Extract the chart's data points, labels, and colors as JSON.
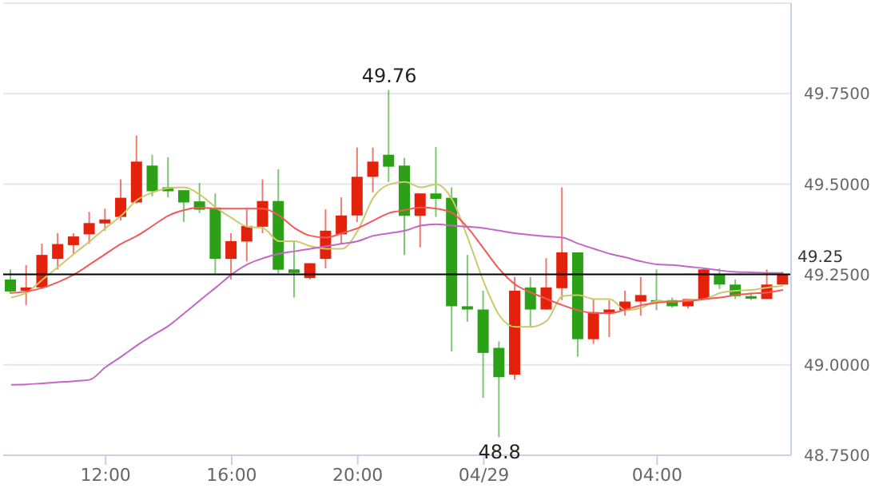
{
  "chart_data": {
    "type": "candlestick",
    "categories": [
      null,
      null,
      null,
      null,
      null,
      null,
      "12:00",
      null,
      null,
      null,
      null,
      null,
      null,
      null,
      "16:00",
      null,
      null,
      null,
      null,
      null,
      null,
      null,
      "20:00",
      null,
      null,
      null,
      null,
      null,
      null,
      null,
      "04/29",
      null,
      null,
      null,
      null,
      null,
      null,
      null,
      null,
      null,
      null,
      "04:00",
      null,
      null,
      null,
      null,
      null,
      null,
      null,
      null
    ],
    "ohlc": [
      [
        49.236,
        49.264,
        49.196,
        49.203
      ],
      [
        49.205,
        49.276,
        49.165,
        49.214
      ],
      [
        49.214,
        49.335,
        49.21,
        49.304
      ],
      [
        49.293,
        49.364,
        49.264,
        49.334
      ],
      [
        49.331,
        49.364,
        49.307,
        49.355
      ],
      [
        49.361,
        49.423,
        49.335,
        49.392
      ],
      [
        49.391,
        49.432,
        49.371,
        49.402
      ],
      [
        49.409,
        49.513,
        49.399,
        49.462
      ],
      [
        49.449,
        49.634,
        49.446,
        49.562
      ],
      [
        49.551,
        49.581,
        49.466,
        49.48
      ],
      [
        49.491,
        49.574,
        49.463,
        49.48
      ],
      [
        49.483,
        49.483,
        49.395,
        49.449
      ],
      [
        49.452,
        49.503,
        49.42,
        49.429
      ],
      [
        49.435,
        49.474,
        49.253,
        49.293
      ],
      [
        49.293,
        49.364,
        49.236,
        49.342
      ],
      [
        49.341,
        49.43,
        49.286,
        49.384
      ],
      [
        49.382,
        49.513,
        49.364,
        49.453
      ],
      [
        49.453,
        49.541,
        49.253,
        49.263
      ],
      [
        49.264,
        49.341,
        49.186,
        49.254
      ],
      [
        49.24,
        49.281,
        49.236,
        49.281
      ],
      [
        49.293,
        49.43,
        49.267,
        49.371
      ],
      [
        49.361,
        49.463,
        49.335,
        49.413
      ],
      [
        49.413,
        49.601,
        49.395,
        49.52
      ],
      [
        49.52,
        49.601,
        49.477,
        49.562
      ],
      [
        49.581,
        49.76,
        49.506,
        49.548
      ],
      [
        49.551,
        49.572,
        49.304,
        49.412
      ],
      [
        49.412,
        49.474,
        49.325,
        49.474
      ],
      [
        49.474,
        49.602,
        49.409,
        49.459
      ],
      [
        49.462,
        49.491,
        49.037,
        49.162
      ],
      [
        49.162,
        49.304,
        49.119,
        49.153
      ],
      [
        49.153,
        49.205,
        48.909,
        49.033
      ],
      [
        49.047,
        49.065,
        48.8,
        48.966
      ],
      [
        48.973,
        49.243,
        48.959,
        49.205
      ],
      [
        49.214,
        49.243,
        49.105,
        49.153
      ],
      [
        49.153,
        49.295,
        49.153,
        49.214
      ],
      [
        49.212,
        49.491,
        49.179,
        49.311
      ],
      [
        49.311,
        49.311,
        49.023,
        49.071
      ],
      [
        49.071,
        49.182,
        49.058,
        49.146
      ],
      [
        49.143,
        49.179,
        49.077,
        49.153
      ],
      [
        49.151,
        49.205,
        49.136,
        49.175
      ],
      [
        49.175,
        49.243,
        49.136,
        49.193
      ],
      [
        49.179,
        49.264,
        49.151,
        49.175
      ],
      [
        49.179,
        49.186,
        49.158,
        49.162
      ],
      [
        49.162,
        49.182,
        49.156,
        49.182
      ],
      [
        49.182,
        49.264,
        49.182,
        49.264
      ],
      [
        49.25,
        49.267,
        49.21,
        49.222
      ],
      [
        49.222,
        49.236,
        49.182,
        49.19
      ],
      [
        49.19,
        49.2,
        49.179,
        49.183
      ],
      [
        49.182,
        49.264,
        49.182,
        49.222
      ],
      [
        49.222,
        49.257,
        49.222,
        49.25
      ]
    ],
    "colors": [
      "#2ca118",
      "#e4220c",
      "#e4220c",
      "#e4220c",
      "#e4220c",
      "#e4220c",
      "#e4220c",
      "#e4220c",
      "#e4220c",
      "#2ca118",
      "#2ca118",
      "#2ca118",
      "#2ca118",
      "#2ca118",
      "#e4220c",
      "#e4220c",
      "#e4220c",
      "#2ca118",
      "#2ca118",
      "#e4220c",
      "#e4220c",
      "#e4220c",
      "#e4220c",
      "#e4220c",
      "#2ca118",
      "#2ca118",
      "#e4220c",
      "#2ca118",
      "#2ca118",
      "#2ca118",
      "#2ca118",
      "#2ca118",
      "#e4220c",
      "#2ca118",
      "#e4220c",
      "#e4220c",
      "#2ca118",
      "#e4220c",
      "#e4220c",
      "#e4220c",
      "#e4220c",
      "#2ca118",
      "#2ca118",
      "#e4220c",
      "#e4220c",
      "#2ca118",
      "#2ca118",
      "#2ca118",
      "#e4220c",
      "#e4220c"
    ],
    "series": [
      {
        "type": "line",
        "color": "#cdc86a",
        "values": [
          49.186,
          49.2,
          49.236,
          49.271,
          49.307,
          49.342,
          49.378,
          49.413,
          49.456,
          49.477,
          49.489,
          49.491,
          49.47,
          49.435,
          49.406,
          49.382,
          49.378,
          49.342,
          49.342,
          49.328,
          49.321,
          49.321,
          49.371,
          49.463,
          49.499,
          49.506,
          49.491,
          49.499,
          49.456,
          49.349,
          49.229,
          49.136,
          49.105,
          49.105,
          49.122,
          49.19,
          49.193,
          49.182,
          49.182,
          49.151,
          49.158,
          49.176,
          49.175,
          49.179,
          49.182,
          49.199,
          49.205,
          49.207,
          49.214,
          49.219
        ]
      },
      {
        "type": "line",
        "color": "#f25a5a",
        "values": [
          49.199,
          49.203,
          49.213,
          49.229,
          49.25,
          49.278,
          49.307,
          49.335,
          49.357,
          49.385,
          49.413,
          49.428,
          49.435,
          49.432,
          49.432,
          49.432,
          49.432,
          49.413,
          49.378,
          49.357,
          49.352,
          49.364,
          49.378,
          49.399,
          49.42,
          49.428,
          49.435,
          49.432,
          49.42,
          49.378,
          49.321,
          49.264,
          49.222,
          49.2,
          49.182,
          49.165,
          49.151,
          49.143,
          49.143,
          49.153,
          49.165,
          49.172,
          49.175,
          49.176,
          49.182,
          49.186,
          49.193,
          49.197,
          49.2,
          49.207
        ]
      },
      {
        "type": "line",
        "color": "#c466c8",
        "values": [
          48.945,
          48.946,
          48.949,
          48.952,
          48.955,
          48.959,
          48.994,
          49.023,
          49.054,
          49.082,
          49.108,
          49.143,
          49.179,
          49.214,
          49.25,
          49.278,
          49.295,
          49.307,
          49.314,
          49.321,
          49.328,
          49.335,
          49.342,
          49.357,
          49.364,
          49.371,
          49.385,
          49.389,
          49.385,
          49.382,
          49.378,
          49.371,
          49.364,
          49.359,
          49.355,
          49.352,
          49.335,
          49.321,
          49.307,
          49.297,
          49.286,
          49.278,
          49.276,
          49.271,
          49.267,
          49.261,
          49.257,
          49.256,
          49.254,
          49.254
        ]
      }
    ],
    "ylim": [
      48.75,
      50
    ],
    "yticks": [
      {
        "value": 48.75,
        "label": "48.7500"
      },
      {
        "value": 49,
        "label": "49.0000"
      },
      {
        "value": 49.25,
        "label": "49.2500"
      },
      {
        "value": 49.5,
        "label": "49.5000"
      },
      {
        "value": 49.75,
        "label": "49.7500"
      }
    ],
    "grid": "y",
    "ref_lines": [
      {
        "axis": "y",
        "value": 49.25,
        "label": "49.25",
        "color": "#000000"
      }
    ],
    "annotations": [
      {
        "text": "49.76",
        "y": 49.76
      },
      {
        "text": "48.8",
        "y": 48.8
      }
    ]
  }
}
